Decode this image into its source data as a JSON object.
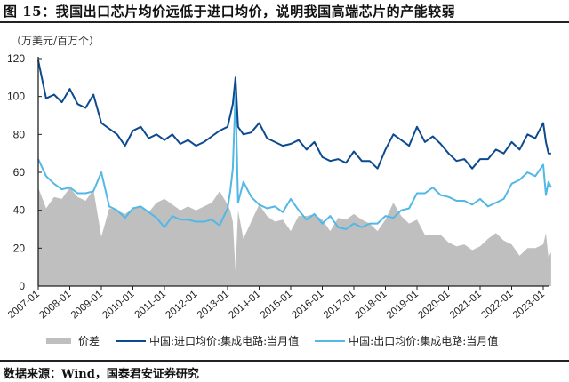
{
  "header": {
    "title": "图 15：我国出口芯片均价远低于进口均价，说明我国高端芯片的产能较弱",
    "unit": "（万美元/百万个）"
  },
  "footer": {
    "source": "数据来源：Wind，国泰君安证券研究"
  },
  "colors": {
    "import": "#0d4a8f",
    "export": "#52b8e6",
    "spread": "#bfbfbf",
    "axis": "#222222"
  },
  "legend": [
    {
      "label": "价差",
      "type": "area",
      "color": "#bfbfbf"
    },
    {
      "label": "中国:进口均价:集成电路:当月值",
      "type": "line",
      "color": "#0d4a8f"
    },
    {
      "label": "中国:出口均价:集成电路:当月值",
      "type": "line",
      "color": "#52b8e6"
    }
  ],
  "chart_data": {
    "type": "line",
    "title": "我国出口芯片均价远低于进口均价，说明我国高端芯片的产能较弱",
    "xlabel": "",
    "ylabel": "万美元/百万个",
    "ylim": [
      0,
      120
    ],
    "yticks": [
      0,
      20,
      40,
      60,
      80,
      100,
      120
    ],
    "xticks": [
      "2007-01",
      "2008-01",
      "2009-01",
      "2010-01",
      "2011-01",
      "2012-01",
      "2013-01",
      "2014-01",
      "2015-01",
      "2016-01",
      "2017-01",
      "2018-01",
      "2019-01",
      "2020-01",
      "2021-01",
      "2022-01",
      "2023-01"
    ],
    "grid": false,
    "legend_position": "bottom",
    "x": [
      "2007-01",
      "2007-04",
      "2007-07",
      "2007-10",
      "2008-01",
      "2008-04",
      "2008-07",
      "2008-10",
      "2009-01",
      "2009-04",
      "2009-07",
      "2009-10",
      "2010-01",
      "2010-04",
      "2010-07",
      "2010-10",
      "2011-01",
      "2011-04",
      "2011-07",
      "2011-10",
      "2012-01",
      "2012-04",
      "2012-07",
      "2012-10",
      "2013-01",
      "2013-02",
      "2013-03",
      "2013-04",
      "2013-05",
      "2013-07",
      "2013-10",
      "2014-01",
      "2014-04",
      "2014-07",
      "2014-10",
      "2015-01",
      "2015-04",
      "2015-07",
      "2015-10",
      "2016-01",
      "2016-04",
      "2016-07",
      "2016-10",
      "2017-01",
      "2017-04",
      "2017-07",
      "2017-10",
      "2018-01",
      "2018-04",
      "2018-07",
      "2018-10",
      "2019-01",
      "2019-04",
      "2019-07",
      "2019-10",
      "2020-01",
      "2020-04",
      "2020-07",
      "2020-10",
      "2021-01",
      "2021-04",
      "2021-07",
      "2021-10",
      "2022-01",
      "2022-04",
      "2022-07",
      "2022-10",
      "2023-01",
      "2023-02",
      "2023-03",
      "2023-04"
    ],
    "series": [
      {
        "name": "中国:进口均价:集成电路:当月值",
        "type": "line",
        "color": "#0d4a8f",
        "values": [
          119,
          99,
          101,
          97,
          104,
          96,
          94,
          101,
          86,
          83,
          80,
          74,
          82,
          84,
          78,
          80,
          77,
          80,
          75,
          77,
          74,
          76,
          79,
          82,
          84,
          90,
          96,
          110,
          84,
          80,
          81,
          86,
          78,
          76,
          74,
          75,
          77,
          72,
          76,
          68,
          66,
          67,
          65,
          71,
          66,
          66,
          62,
          72,
          80,
          77,
          74,
          84,
          76,
          79,
          75,
          70,
          66,
          67,
          62,
          67,
          67,
          72,
          70,
          76,
          72,
          80,
          78,
          86,
          76,
          70,
          70
        ]
      },
      {
        "name": "中国:出口均价:集成电路:当月值",
        "type": "line",
        "color": "#52b8e6",
        "values": [
          67,
          58,
          54,
          51,
          52,
          49,
          49,
          50,
          60,
          42,
          40,
          36,
          41,
          42,
          39,
          36,
          31,
          37,
          35,
          35,
          34,
          34,
          35,
          32,
          41,
          50,
          62,
          102,
          44,
          55,
          47,
          43,
          41,
          42,
          39,
          46,
          40,
          35,
          38,
          33,
          37,
          31,
          30,
          33,
          31,
          33,
          33,
          37,
          36,
          40,
          41,
          49,
          49,
          52,
          48,
          47,
          45,
          45,
          43,
          46,
          42,
          44,
          46,
          54,
          56,
          60,
          58,
          64,
          48,
          55,
          52
        ]
      },
      {
        "name": "价差",
        "type": "area",
        "color": "#bfbfbf",
        "values": [
          52,
          41,
          47,
          46,
          52,
          47,
          45,
          51,
          26,
          41,
          40,
          38,
          41,
          42,
          39,
          44,
          46,
          43,
          40,
          42,
          40,
          42,
          44,
          50,
          43,
          40,
          34,
          8,
          40,
          25,
          34,
          43,
          37,
          34,
          35,
          29,
          37,
          37,
          38,
          35,
          29,
          36,
          35,
          38,
          35,
          33,
          29,
          35,
          44,
          37,
          33,
          35,
          27,
          27,
          27,
          23,
          21,
          22,
          19,
          21,
          25,
          28,
          24,
          22,
          16,
          20,
          20,
          22,
          28,
          15,
          18
        ]
      }
    ]
  }
}
